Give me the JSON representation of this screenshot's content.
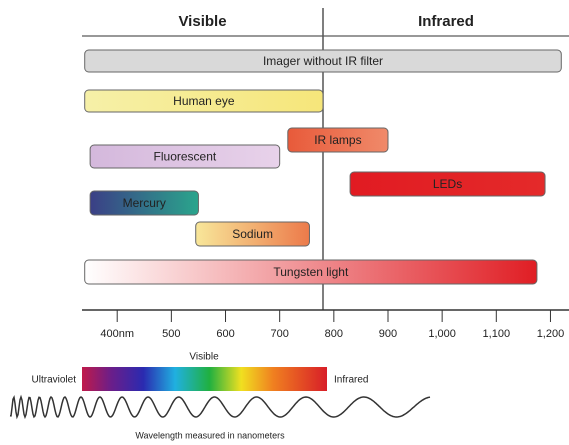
{
  "chart_data": {
    "type": "range-bar",
    "regions": [
      "Visible",
      "Infrared"
    ],
    "divider": 780,
    "xlim": [
      335,
      1225
    ],
    "xticks": [
      {
        "value": 400,
        "label": "400nm"
      },
      500,
      600,
      700,
      800,
      900,
      {
        "value": 1000,
        "label": "1,000"
      },
      {
        "value": 1100,
        "label": "1,100"
      },
      {
        "value": 1200,
        "label": "1,200"
      }
    ],
    "bars": [
      {
        "name": "Imager without IR filter",
        "start": 340,
        "end": 1220,
        "colors": [
          "#d9d9d9",
          "#d9d9d9"
        ]
      },
      {
        "name": "Human eye",
        "start": 340,
        "end": 780,
        "colors": [
          "#f6f0a8",
          "#f6e67a"
        ]
      },
      {
        "name": "IR lamps",
        "start": 715,
        "end": 900,
        "colors": [
          "#e85a3a",
          "#f08a6a"
        ]
      },
      {
        "name": "Fluorescent",
        "start": 350,
        "end": 700,
        "colors": [
          "#d4b8dc",
          "#e8d2ea"
        ]
      },
      {
        "name": "LEDs",
        "start": 830,
        "end": 1190,
        "colors": [
          "#e11b22",
          "#e42a2a"
        ]
      },
      {
        "name": "Mercury",
        "start": 350,
        "end": 550,
        "colors": [
          "#3b3f86",
          "#2aa58c"
        ]
      },
      {
        "name": "Sodium",
        "start": 545,
        "end": 755,
        "colors": [
          "#f8e79a",
          "#ec7a4a"
        ]
      },
      {
        "name": "Tungsten light",
        "start": 340,
        "end": 1175,
        "colors": [
          "#ffffff",
          "#e01e24"
        ]
      }
    ],
    "spectrum": {
      "title": "Visible",
      "left": "Ultraviolet",
      "right": "Infrared",
      "caption": "Wavelength measured in nanometers"
    }
  }
}
